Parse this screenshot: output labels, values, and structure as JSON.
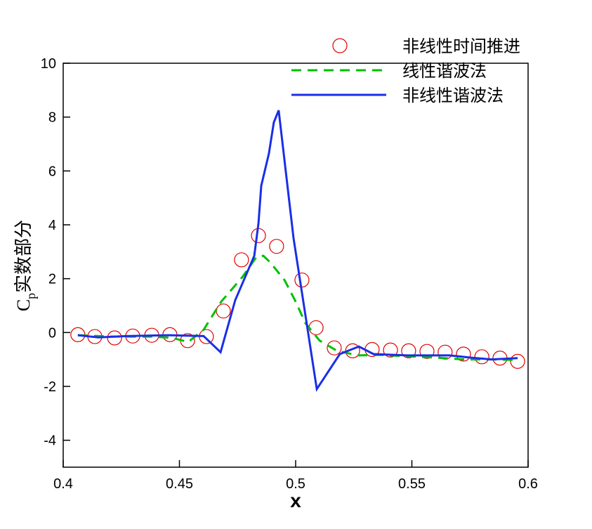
{
  "chart_data": {
    "type": "line",
    "xlabel": "x",
    "ylabel": {
      "base": "C",
      "sub": "p",
      "text": "实数部分"
    },
    "xlim": [
      0.4,
      0.6
    ],
    "xticks": [
      0.4,
      0.45,
      0.5,
      0.55,
      0.6
    ],
    "ylim": [
      -5,
      10
    ],
    "yticks": [
      -4,
      -2,
      0,
      2,
      4,
      6,
      8,
      10
    ],
    "series": [
      {
        "name": "非线性时间推进",
        "color": "#e00000",
        "style": "circle",
        "x": [
          0.4063,
          0.4136,
          0.4221,
          0.4299,
          0.4381,
          0.4459,
          0.4535,
          0.4616,
          0.4689,
          0.4767,
          0.484,
          0.4918,
          0.5027,
          0.5088,
          0.5166,
          0.5245,
          0.5329,
          0.5408,
          0.5486,
          0.5565,
          0.5643,
          0.5722,
          0.5801,
          0.5879,
          0.5955
        ],
        "values": [
          -0.08,
          -0.15,
          -0.2,
          -0.13,
          -0.1,
          -0.08,
          -0.3,
          -0.15,
          0.8,
          2.7,
          3.6,
          3.2,
          1.95,
          0.18,
          -0.57,
          -0.68,
          -0.63,
          -0.65,
          -0.68,
          -0.7,
          -0.73,
          -0.8,
          -0.9,
          -0.95,
          -1.07
        ]
      },
      {
        "name": "线性谐波法",
        "color": "#00c000",
        "style": "dashed",
        "x": [
          0.4063,
          0.4211,
          0.4381,
          0.4468,
          0.4538,
          0.4604,
          0.468,
          0.477,
          0.4831,
          0.4861,
          0.4891,
          0.4952,
          0.4997,
          0.5042,
          0.5103,
          0.5178,
          0.5269,
          0.536,
          0.548,
          0.5601,
          0.5722,
          0.5843,
          0.5955
        ],
        "values": [
          -0.1,
          -0.15,
          -0.15,
          -0.2,
          -0.35,
          0.1,
          1.15,
          2.05,
          2.8,
          2.85,
          2.6,
          1.95,
          1.2,
          0.35,
          -0.3,
          -0.68,
          -0.85,
          -0.83,
          -0.88,
          -0.93,
          -1.0,
          -1.0,
          -1.02
        ]
      },
      {
        "name": "非线性谐波法",
        "color": "#1a2ee8",
        "style": "solid",
        "x": [
          0.4063,
          0.4151,
          0.4272,
          0.4453,
          0.4604,
          0.4677,
          0.474,
          0.4822,
          0.484,
          0.4852,
          0.4885,
          0.4906,
          0.4927,
          0.4991,
          0.5091,
          0.519,
          0.5272,
          0.5335,
          0.548,
          0.5662,
          0.5752,
          0.5843,
          0.5955
        ],
        "values": [
          -0.1,
          -0.18,
          -0.13,
          -0.1,
          -0.13,
          -0.73,
          1.2,
          2.85,
          4.05,
          5.45,
          6.65,
          7.8,
          8.25,
          3.5,
          -2.1,
          -0.8,
          -0.52,
          -0.8,
          -0.85,
          -0.85,
          -0.93,
          -1.0,
          -0.95
        ]
      }
    ]
  }
}
